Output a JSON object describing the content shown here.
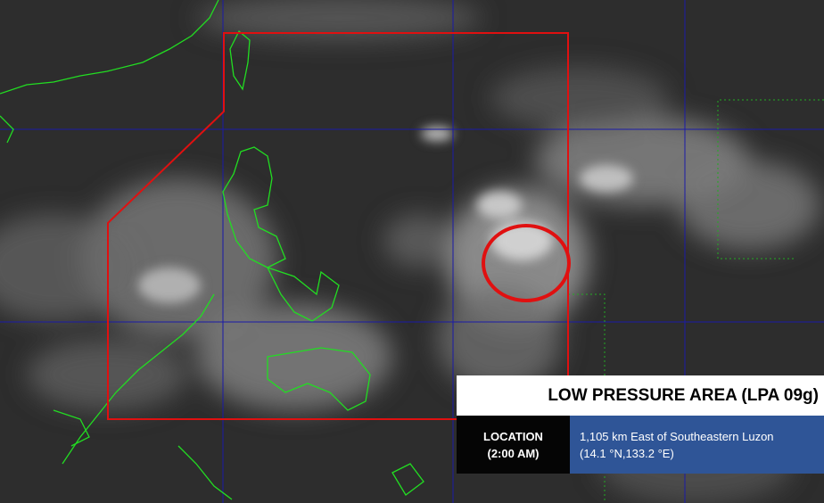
{
  "bulletin": {
    "title": "LOW PRESSURE AREA (LPA 09g)",
    "location_label_line1": "LOCATION",
    "location_label_line2": "(2:00 AM)",
    "location_line1": "1,105 km East of Southeastern Luzon",
    "location_line2": "(14.1 °N,133.2 °E)"
  },
  "map": {
    "imagery": "infrared satellite",
    "colors": {
      "background": "#2d2d2d",
      "grid": "#1a1aa8",
      "par_boundary": "#e01010",
      "lpa_marker": "#e01010",
      "coastline": "#22dd22",
      "header_bg": "#ffffff",
      "label_bg": "#050505",
      "value_bg": "#2f5597"
    }
  }
}
